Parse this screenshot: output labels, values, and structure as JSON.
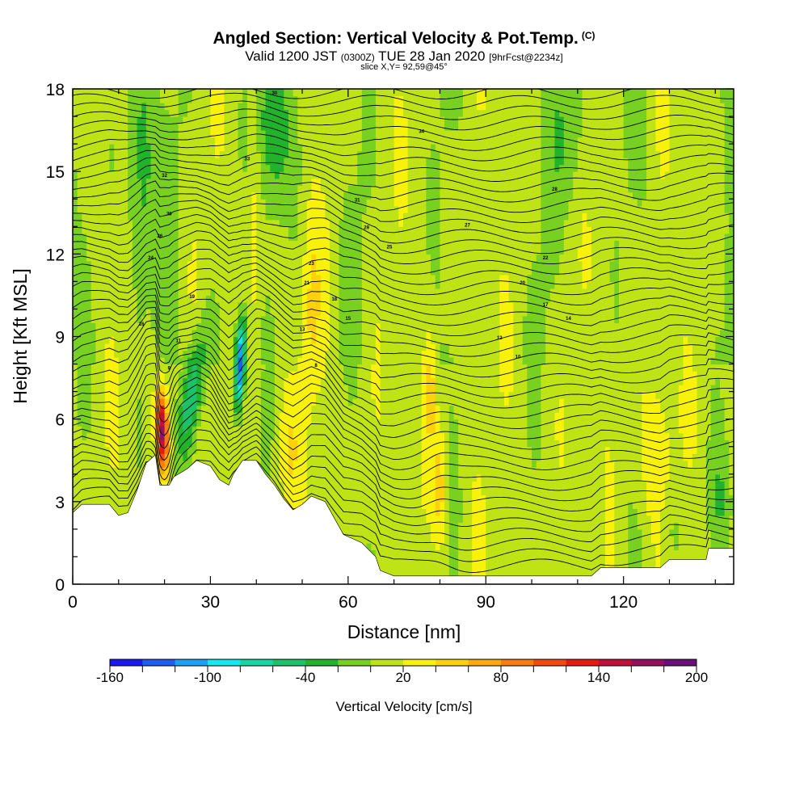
{
  "title": "Angled Section: Vertical Velocity & Pot.Temp.",
  "title_mark": "(C)",
  "valid_prefix": "Valid 1200 JST",
  "valid_utc": "(0300Z)",
  "valid_date": "TUE 28 Jan 2020",
  "valid_fcst": "[9hrFcst@2234z]",
  "slice": "slice X,Y= 92,59@45°",
  "chart_data": {
    "type": "heatmap",
    "xlabel": "Distance [nm]",
    "ylabel": "Height [Kft MSL]",
    "xlim": [
      0,
      144
    ],
    "ylim": [
      0,
      18
    ],
    "x_ticks": [
      0,
      30,
      60,
      90,
      120
    ],
    "x_minor_step": 10,
    "y_ticks": [
      0,
      3,
      6,
      9,
      12,
      15,
      18
    ],
    "y_minor_step": 1,
    "colorbar": {
      "title": "Vertical Velocity [cm/s]",
      "min": -160,
      "max": 200,
      "step": 20,
      "tick_labels": [
        -160,
        -100,
        -40,
        20,
        80,
        140,
        200
      ],
      "colors": [
        "#1a1af0",
        "#1f5cf0",
        "#1aa0f5",
        "#15e8ef",
        "#16d7a2",
        "#1cc26a",
        "#21b32b",
        "#78d020",
        "#bfe314",
        "#f8f20b",
        "#fdd20b",
        "#fca90b",
        "#f77d0d",
        "#f24a0e",
        "#e61a10",
        "#c2103a",
        "#961060",
        "#6a0f7a"
      ]
    },
    "terrain_profile": [
      [
        0,
        2.6
      ],
      [
        2,
        2.9
      ],
      [
        8,
        2.9
      ],
      [
        10,
        2.5
      ],
      [
        12,
        2.6
      ],
      [
        14,
        3.4
      ],
      [
        15,
        3.9
      ],
      [
        16,
        4.4
      ],
      [
        18,
        4.7
      ],
      [
        19,
        3.6
      ],
      [
        21,
        3.6
      ],
      [
        22,
        3.9
      ],
      [
        25,
        4.2
      ],
      [
        27,
        4.5
      ],
      [
        30,
        4.3
      ],
      [
        32,
        3.8
      ],
      [
        34,
        3.6
      ],
      [
        35,
        4.0
      ],
      [
        37,
        4.5
      ],
      [
        40,
        4.5
      ],
      [
        42,
        4.0
      ],
      [
        44,
        3.6
      ],
      [
        46,
        3.1
      ],
      [
        48,
        2.7
      ],
      [
        50,
        2.9
      ],
      [
        52,
        3.2
      ],
      [
        55,
        3.0
      ],
      [
        57,
        2.4
      ],
      [
        59,
        1.8
      ],
      [
        63,
        1.5
      ],
      [
        66,
        1.0
      ],
      [
        67,
        0.5
      ],
      [
        70,
        0.3
      ],
      [
        80,
        0.3
      ],
      [
        100,
        0.3
      ],
      [
        113,
        0.3
      ],
      [
        115,
        0.6
      ],
      [
        128,
        0.6
      ],
      [
        130,
        0.9
      ],
      [
        138,
        0.9
      ],
      [
        138.5,
        1.3
      ],
      [
        144,
        1.3
      ]
    ],
    "features": [
      {
        "type": "updraft",
        "x": 19.5,
        "y": 5.6,
        "peak": 160
      },
      {
        "type": "downdraft",
        "x": 37,
        "y": 8.0,
        "peak": -150
      },
      {
        "type": "downdraft",
        "x": 27,
        "y": 7.5,
        "peak": -80
      },
      {
        "type": "updraft",
        "x": 40,
        "y": 15,
        "peak": 40
      },
      {
        "type": "updraft",
        "x": 52,
        "y": 9.5,
        "peak": 60
      },
      {
        "type": "updraft",
        "x": 80,
        "y": 3.5,
        "peak": 80
      },
      {
        "type": "updraft",
        "x": 127,
        "y": 4.5,
        "peak": 40
      }
    ],
    "contour_labels": [
      "30",
      "34",
      "33",
      "32",
      "31",
      "30",
      "29",
      "28",
      "27",
      "26",
      "25",
      "24",
      "23",
      "22",
      "21",
      "20",
      "19",
      "18",
      "17",
      "16",
      "15",
      "14",
      "13",
      "12",
      "11",
      "10",
      "9",
      "8"
    ]
  }
}
